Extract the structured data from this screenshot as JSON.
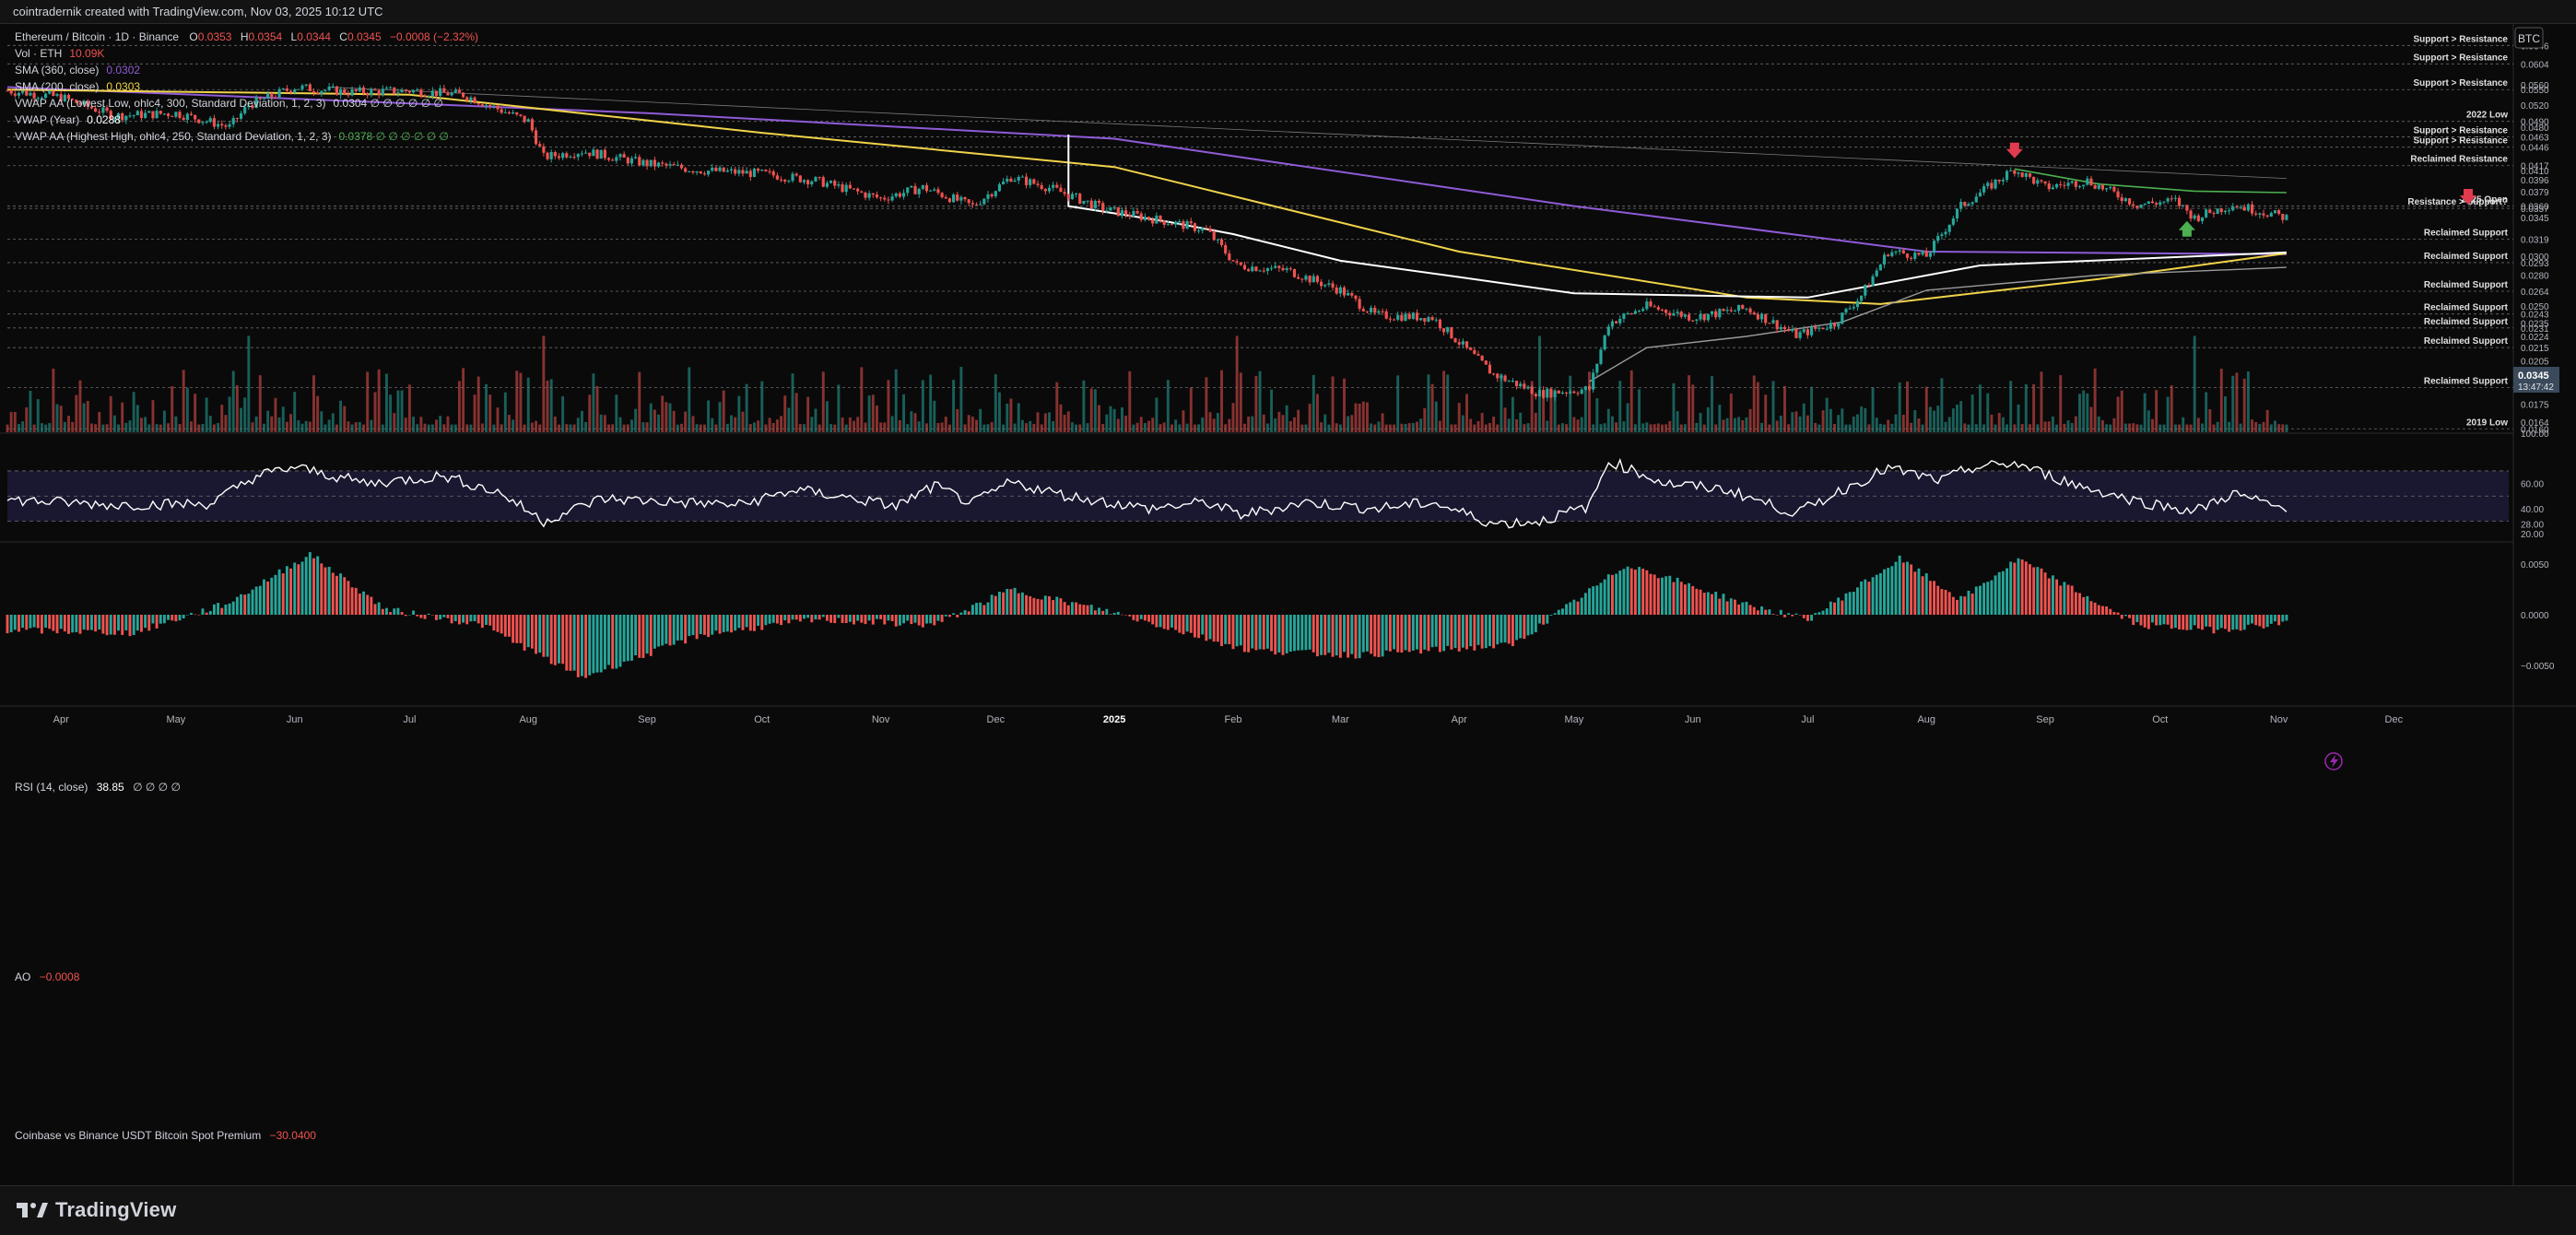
{
  "header": {
    "credit": "cointradernik created with TradingView.com, Nov 03, 2025 10:12 UTC"
  },
  "brand": {
    "name": "TradingView"
  },
  "legend": {
    "title": "Ethereum / Bitcoin · 1D · Binance",
    "ohlc": {
      "o_label": "O",
      "o": "0.0353",
      "h_label": "H",
      "h": "0.0354",
      "l_label": "L",
      "l": "0.0344",
      "c_label": "C",
      "c": "0.0345",
      "change": "−0.0008 (−2.32%)"
    },
    "vol": {
      "label": "Vol · ETH",
      "value": "10.09K"
    },
    "sma360": {
      "label": "SMA (360, close)",
      "value": "0.0302"
    },
    "sma200": {
      "label": "SMA (200, close)",
      "value": "0.0303"
    },
    "vwap_low": {
      "label": "VWAP AA (Lowest Low, ohlc4, 300, Standard Deviation, 1, 2, 3)",
      "value": "0.0304 ∅ ∅ ∅ ∅ ∅ ∅"
    },
    "vwap_year": {
      "label": "VWAP (Year)",
      "value": "0.0288"
    },
    "vwap_high": {
      "label": "VWAP AA (Highest High, ohlc4, 250, Standard Deviation, 1, 2, 3)",
      "value": "0.0378 ∅ ∅ ∅ ∅ ∅ ∅"
    }
  },
  "currency_badge": "BTC",
  "rsi_legend": {
    "label": "RSI (14, close)",
    "value": "38.85",
    "extra": "∅ ∅ ∅ ∅"
  },
  "ao_legend": {
    "label": "AO",
    "value": "−0.0008"
  },
  "premium_legend": {
    "label": "Coinbase vs Binance USDT Bitcoin Spot Premium",
    "value": "−30.0400"
  },
  "current_price": {
    "value": "0.0345",
    "countdown": "13:47:42"
  },
  "colors": {
    "up": "#26a69a",
    "down": "#ef5350",
    "sma360": "#8f5bd7",
    "sma200": "#f0d34a",
    "vwap_white": "#ffffff",
    "vwap_gray": "#9a9a9a",
    "vwap_green": "#4caf50",
    "arrow_red": "#e03b4e",
    "arrow_green": "#4caf50",
    "background": "#0a0a0a"
  },
  "chart_data": [
    {
      "type": "candlestick",
      "title": "Ethereum / Bitcoin · 1D · Binance",
      "x_ticks": [
        "Apr",
        "May",
        "Jun",
        "Jul",
        "Aug",
        "Sep",
        "Oct",
        "Nov",
        "Dec",
        "2025",
        "Feb",
        "Mar",
        "Apr",
        "May",
        "Jun",
        "Jul",
        "Aug",
        "Sep",
        "Oct",
        "Nov",
        "Dec"
      ],
      "x_range": [
        "2024-03-18",
        "2025-12-31"
      ],
      "y_ticks": [
        "0.0646",
        "0.0604",
        "0.0560",
        "0.0550",
        "0.0520",
        "0.0490",
        "0.0480",
        "0.0463",
        "0.0446",
        "0.0417",
        "0.0410",
        "0.0396",
        "0.0379",
        "0.0360",
        "0.0357",
        "0.0345",
        "0.0319",
        "0.0300",
        "0.0293",
        "0.0280",
        "0.0264",
        "0.0250",
        "0.0243",
        "0.0235",
        "0.0231",
        "0.0224",
        "0.0215",
        "0.0205",
        "0.0193",
        "0.0186",
        "0.0175",
        "0.0164",
        "0.0160"
      ],
      "y_scale": "log",
      "annotations": [
        {
          "text": "Support > Resistance",
          "price": "0.0646"
        },
        {
          "text": "Support > Resistance",
          "price": "0.0604"
        },
        {
          "text": "Support > Resistance",
          "price": "0.0550"
        },
        {
          "text": "2022 Low",
          "price": "0.0490"
        },
        {
          "text": "Support > Resistance",
          "price": "0.0463"
        },
        {
          "text": "Support > Resistance",
          "price": "0.0446"
        },
        {
          "text": "Reclaimed Resistance",
          "price": "0.0417"
        },
        {
          "text": "2025 Open",
          "price": "0.0360"
        },
        {
          "text": "Resistance > Support?",
          "price": "0.0357"
        },
        {
          "text": "Reclaimed Support",
          "price": "0.0319"
        },
        {
          "text": "Reclaimed Support",
          "price": "0.0293"
        },
        {
          "text": "Reclaimed Support",
          "price": "0.0264"
        },
        {
          "text": "Reclaimed Support",
          "price": "0.0243"
        },
        {
          "text": "Reclaimed Support",
          "price": "0.0231"
        },
        {
          "text": "Reclaimed Support",
          "price": "0.0215"
        },
        {
          "text": "Reclaimed Support",
          "price": "0.0186"
        },
        {
          "text": "2019 Low",
          "price": "0.0160"
        }
      ],
      "price_path": [
        [
          "2024-03-18",
          0.0548
        ],
        [
          "2024-04-01",
          0.0535
        ],
        [
          "2024-04-15",
          0.05
        ],
        [
          "2024-05-01",
          0.0505
        ],
        [
          "2024-05-15",
          0.048
        ],
        [
          "2024-05-20",
          0.052
        ],
        [
          "2024-06-01",
          0.0555
        ],
        [
          "2024-06-15",
          0.0545
        ],
        [
          "2024-07-01",
          0.0548
        ],
        [
          "2024-07-15",
          0.054
        ],
        [
          "2024-08-01",
          0.049
        ],
        [
          "2024-08-05",
          0.043
        ],
        [
          "2024-08-15",
          0.044
        ],
        [
          "2024-09-01",
          0.042
        ],
        [
          "2024-09-15",
          0.041
        ],
        [
          "2024-10-01",
          0.0405
        ],
        [
          "2024-10-15",
          0.0395
        ],
        [
          "2024-11-01",
          0.037
        ],
        [
          "2024-11-12",
          0.0385
        ],
        [
          "2024-11-25",
          0.036
        ],
        [
          "2024-12-05",
          0.04
        ],
        [
          "2024-12-15",
          0.0385
        ],
        [
          "2024-12-30",
          0.0355
        ],
        [
          "2025-01-15",
          0.034
        ],
        [
          "2025-01-25",
          0.033
        ],
        [
          "2025-02-02",
          0.029
        ],
        [
          "2025-02-15",
          0.0285
        ],
        [
          "2025-03-01",
          0.0265
        ],
        [
          "2025-03-10",
          0.0242
        ],
        [
          "2025-03-25",
          0.024
        ],
        [
          "2025-04-10",
          0.0195
        ],
        [
          "2025-04-22",
          0.0182
        ],
        [
          "2025-05-05",
          0.0185
        ],
        [
          "2025-05-10",
          0.0235
        ],
        [
          "2025-05-20",
          0.025
        ],
        [
          "2025-06-01",
          0.024
        ],
        [
          "2025-06-15",
          0.0248
        ],
        [
          "2025-06-28",
          0.0225
        ],
        [
          "2025-07-08",
          0.0235
        ],
        [
          "2025-07-15",
          0.026
        ],
        [
          "2025-07-22",
          0.0305
        ],
        [
          "2025-08-01",
          0.03
        ],
        [
          "2025-08-10",
          0.036
        ],
        [
          "2025-08-24",
          0.0412
        ],
        [
          "2025-09-01",
          0.0385
        ],
        [
          "2025-09-12",
          0.0395
        ],
        [
          "2025-09-25",
          0.0362
        ],
        [
          "2025-10-05",
          0.0367
        ],
        [
          "2025-10-10",
          0.0345
        ],
        [
          "2025-10-20",
          0.0362
        ],
        [
          "2025-11-03",
          0.0345
        ]
      ],
      "series": [
        {
          "name": "SMA (360, close)",
          "points": [
            [
              "2024-03-18",
              0.0555
            ],
            [
              "2024-09-01",
              0.0505
            ],
            [
              "2025-01-01",
              0.046
            ],
            [
              "2025-05-01",
              0.036
            ],
            [
              "2025-08-01",
              0.0305
            ],
            [
              "2025-11-03",
              0.0302
            ]
          ]
        },
        {
          "name": "SMA (200, close)",
          "points": [
            [
              "2024-03-18",
              0.055
            ],
            [
              "2024-07-01",
              0.054
            ],
            [
              "2024-10-01",
              0.047
            ],
            [
              "2025-01-01",
              0.0415
            ],
            [
              "2025-04-01",
              0.0305
            ],
            [
              "2025-06-15",
              0.0258
            ],
            [
              "2025-07-20",
              0.0252
            ],
            [
              "2025-09-15",
              0.0276
            ],
            [
              "2025-11-03",
              0.0303
            ]
          ]
        },
        {
          "name": "VWAP AA (Lowest Low, ohlc4, 300, Standard Deviation, 1, 2, 3)",
          "points": [
            [
              "2024-12-20",
              0.0467
            ],
            [
              "2024-12-20",
              0.036
            ],
            [
              "2025-01-15",
              0.034
            ],
            [
              "2025-02-01",
              0.0325
            ],
            [
              "2025-03-01",
              0.0295
            ],
            [
              "2025-04-01",
              0.0278
            ],
            [
              "2025-05-01",
              0.0262
            ],
            [
              "2025-07-01",
              0.0258
            ],
            [
              "2025-08-15",
              0.029
            ],
            [
              "2025-11-03",
              0.0304
            ]
          ]
        },
        {
          "name": "VWAP (Year)",
          "points": [
            [
              "2025-05-05",
              0.019
            ],
            [
              "2025-05-20",
              0.0215
            ],
            [
              "2025-06-15",
              0.0224
            ],
            [
              "2025-07-10",
              0.0236
            ],
            [
              "2025-08-01",
              0.0265
            ],
            [
              "2025-09-15",
              0.028
            ],
            [
              "2025-11-03",
              0.0288
            ]
          ]
        },
        {
          "name": "VWAP AA (Highest High, ohlc4, 250, Standard Deviation, 1, 2, 3)",
          "points": [
            [
              "2025-08-24",
              0.0412
            ],
            [
              "2025-09-15",
              0.039
            ],
            [
              "2025-10-10",
              0.038
            ],
            [
              "2025-11-03",
              0.0378
            ]
          ]
        }
      ],
      "markers": [
        {
          "type": "arrow-down",
          "date": "2025-08-24",
          "price": 0.044,
          "color": "#e03b4e"
        },
        {
          "type": "arrow-up",
          "date": "2025-10-08",
          "price": 0.0332,
          "color": "#4caf50"
        }
      ]
    },
    {
      "type": "line",
      "title": "RSI (14, close)",
      "y_ticks": [
        "100.00",
        "60.00",
        "40.00",
        "28.00",
        "20.00"
      ],
      "y_range": [
        15,
        100
      ],
      "bands": [
        70,
        50,
        30
      ],
      "points": [
        [
          "2024-03-18",
          47
        ],
        [
          "2024-04-15",
          43
        ],
        [
          "2024-05-10",
          44
        ],
        [
          "2024-05-22",
          66
        ],
        [
          "2024-06-01",
          73
        ],
        [
          "2024-06-20",
          60
        ],
        [
          "2024-07-10",
          66
        ],
        [
          "2024-07-25",
          52
        ],
        [
          "2024-08-05",
          30
        ],
        [
          "2024-08-20",
          48
        ],
        [
          "2024-09-10",
          45
        ],
        [
          "2024-09-25",
          43
        ],
        [
          "2024-10-10",
          55
        ],
        [
          "2024-10-25",
          48
        ],
        [
          "2024-11-05",
          42
        ],
        [
          "2024-11-15",
          58
        ],
        [
          "2024-11-25",
          44
        ],
        [
          "2024-12-05",
          61
        ],
        [
          "2024-12-20",
          50
        ],
        [
          "2025-01-10",
          40
        ],
        [
          "2025-01-25",
          45
        ],
        [
          "2025-02-03",
          35
        ],
        [
          "2025-02-20",
          45
        ],
        [
          "2025-03-10",
          40
        ],
        [
          "2025-03-25",
          45
        ],
        [
          "2025-04-10",
          28
        ],
        [
          "2025-04-22",
          30
        ],
        [
          "2025-05-05",
          42
        ],
        [
          "2025-05-10",
          78
        ],
        [
          "2025-05-25",
          60
        ],
        [
          "2025-06-10",
          55
        ],
        [
          "2025-06-28",
          36
        ],
        [
          "2025-07-10",
          55
        ],
        [
          "2025-07-22",
          72
        ],
        [
          "2025-08-05",
          62
        ],
        [
          "2025-08-12",
          72
        ],
        [
          "2025-08-24",
          76
        ],
        [
          "2025-09-10",
          58
        ],
        [
          "2025-09-25",
          46
        ],
        [
          "2025-10-10",
          38
        ],
        [
          "2025-10-20",
          52
        ],
        [
          "2025-11-03",
          39
        ]
      ]
    },
    {
      "type": "bar",
      "title": "AO",
      "y_ticks": [
        "0.0050",
        "0.0000",
        "−0.0050"
      ],
      "y_range": [
        -0.0072,
        0.0072
      ],
      "points": [
        [
          "2024-03-18",
          -0.0015
        ],
        [
          "2024-04-20",
          -0.0018
        ],
        [
          "2024-05-15",
          0.0012
        ],
        [
          "2024-06-05",
          0.006
        ],
        [
          "2024-06-25",
          0.0005
        ],
        [
          "2024-07-20",
          -0.001
        ],
        [
          "2024-08-15",
          -0.0062
        ],
        [
          "2024-09-15",
          -0.002
        ],
        [
          "2024-10-15",
          -0.0005
        ],
        [
          "2024-11-15",
          -0.001
        ],
        [
          "2024-12-05",
          0.0025
        ],
        [
          "2025-01-01",
          0.0002
        ],
        [
          "2025-02-05",
          -0.0035
        ],
        [
          "2025-03-05",
          -0.004
        ],
        [
          "2025-04-15",
          -0.003
        ],
        [
          "2025-05-15",
          0.005
        ],
        [
          "2025-06-15",
          0.001
        ],
        [
          "2025-07-01",
          -0.0005
        ],
        [
          "2025-07-25",
          0.0055
        ],
        [
          "2025-08-10",
          0.0015
        ],
        [
          "2025-08-25",
          0.0055
        ],
        [
          "2025-09-25",
          -0.001
        ],
        [
          "2025-10-15",
          -0.0015
        ],
        [
          "2025-11-03",
          -0.0008
        ]
      ]
    }
  ]
}
